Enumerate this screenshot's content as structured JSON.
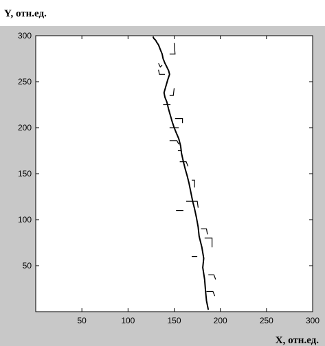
{
  "chart_data": {
    "type": "line",
    "title": "",
    "xlabel": "X, отн.ед.",
    "ylabel": "Y, отн.ед.",
    "xlim": [
      0,
      300
    ],
    "ylim": [
      0,
      300
    ],
    "xticks": [
      50,
      100,
      150,
      200,
      250,
      300
    ],
    "yticks": [
      50,
      100,
      150,
      200,
      250,
      300
    ],
    "grid": false,
    "colors": {
      "figure_bg": "#c8c8c8",
      "axes_bg": "#ffffff",
      "line": "#000000"
    },
    "series": [
      {
        "x": [
          187,
          185,
          184,
          183,
          181,
          182,
          180,
          177,
          176,
          174,
          172,
          170,
          168,
          166,
          164,
          162,
          160,
          158,
          157,
          155,
          152,
          150,
          148,
          146,
          144,
          142,
          140,
          139,
          141,
          143,
          145,
          144,
          142,
          140,
          138,
          137,
          135,
          133,
          131,
          130,
          128,
          127
        ],
        "y": [
          2,
          12,
          22,
          35,
          48,
          58,
          70,
          82,
          92,
          103,
          112,
          120,
          130,
          140,
          148,
          155,
          163,
          172,
          180,
          188,
          195,
          200,
          206,
          213,
          220,
          228,
          233,
          238,
          245,
          252,
          258,
          262,
          266,
          270,
          275,
          280,
          285,
          290,
          293,
          295,
          297,
          299
        ]
      }
    ],
    "branches": [
      {
        "x": [
          185,
          192,
          194
        ],
        "y": [
          22,
          22,
          17
        ]
      },
      {
        "x": [
          187,
          193,
          195
        ],
        "y": [
          40,
          40,
          35
        ]
      },
      {
        "x": [
          183,
          191,
          191
        ],
        "y": [
          80,
          80,
          70
        ]
      },
      {
        "x": [
          179,
          185,
          186
        ],
        "y": [
          90,
          90,
          84
        ]
      },
      {
        "x": [
          175,
          169
        ],
        "y": [
          60,
          60
        ]
      },
      {
        "x": [
          163,
          175,
          176
        ],
        "y": [
          120,
          120,
          113
        ]
      },
      {
        "x": [
          160,
          152
        ],
        "y": [
          110,
          110
        ]
      },
      {
        "x": [
          156,
          163,
          165
        ],
        "y": [
          163,
          163,
          158
        ]
      },
      {
        "x": [
          169,
          172,
          172
        ],
        "y": [
          143,
          143,
          135
        ]
      },
      {
        "x": [
          158,
          154
        ],
        "y": [
          175,
          175
        ]
      },
      {
        "x": [
          145,
          153,
          155
        ],
        "y": [
          186,
          186,
          182
        ]
      },
      {
        "x": [
          145,
          155
        ],
        "y": [
          200,
          200
        ]
      },
      {
        "x": [
          151,
          159,
          159
        ],
        "y": [
          210,
          210,
          205
        ]
      },
      {
        "x": [
          146,
          138
        ],
        "y": [
          225,
          225
        ]
      },
      {
        "x": [
          145,
          149,
          150
        ],
        "y": [
          235,
          235,
          243
        ]
      },
      {
        "x": [
          140,
          134,
          133
        ],
        "y": [
          258,
          258,
          263
        ]
      },
      {
        "x": [
          145,
          151,
          150
        ],
        "y": [
          280,
          280,
          292
        ]
      },
      {
        "x": [
          133,
          135,
          137
        ],
        "y": [
          270,
          266,
          268
        ]
      }
    ]
  }
}
